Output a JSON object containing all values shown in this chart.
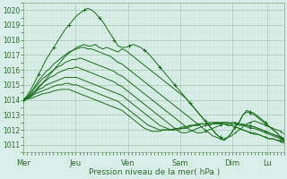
{
  "xlabel": "Pression niveau de la mer( hPa )",
  "bg_color": "#d8eee8",
  "grid_major_color": "#b0ccb8",
  "grid_minor_color": "#c8e0d0",
  "line_color": "#1a6b1a",
  "ylim": [
    1010.5,
    1020.5
  ],
  "yticks": [
    1011,
    1012,
    1013,
    1014,
    1015,
    1016,
    1017,
    1018,
    1019,
    1020
  ],
  "x_day_labels": [
    "Mer",
    "Jeu",
    "Ven",
    "Sam",
    "Dim",
    "Lu"
  ],
  "x_day_positions": [
    0,
    0.2,
    0.4,
    0.6,
    0.8,
    0.933
  ],
  "series": [
    [
      1014.0,
      1014.1,
      1014.3,
      1014.5,
      1014.8,
      1015.1,
      1015.4,
      1015.7,
      1016.0,
      1016.3,
      1016.6,
      1016.9,
      1017.1,
      1017.3,
      1017.5,
      1017.6,
      1017.7,
      1017.6,
      1017.6,
      1017.7,
      1017.5,
      1017.4,
      1017.5,
      1017.4,
      1017.3,
      1017.2,
      1017.4,
      1017.3,
      1017.1,
      1016.9,
      1016.7,
      1016.5,
      1016.3,
      1016.1,
      1015.9,
      1015.7,
      1015.5,
      1015.3,
      1015.1,
      1014.9,
      1014.7,
      1014.5,
      1014.3,
      1014.1,
      1013.8,
      1013.5,
      1013.2,
      1012.9,
      1012.6,
      1012.3,
      1012.0,
      1011.7,
      1011.5,
      1011.3,
      1011.5,
      1011.8,
      1012.2,
      1012.5,
      1013.0,
      1013.2,
      1013.1,
      1013.0,
      1012.8,
      1012.6,
      1012.4,
      1012.2,
      1012.0,
      1011.8,
      1011.5,
      1011.3
    ],
    [
      1014.0,
      1014.2,
      1014.5,
      1014.9,
      1015.3,
      1015.6,
      1015.9,
      1016.1,
      1016.4,
      1016.6,
      1016.8,
      1017.0,
      1017.2,
      1017.3,
      1017.4,
      1017.5,
      1017.5,
      1017.4,
      1017.4,
      1017.3,
      1017.2,
      1017.1,
      1017.0,
      1016.9,
      1016.7,
      1016.5,
      1016.4,
      1016.2,
      1016.0,
      1015.8,
      1015.6,
      1015.4,
      1015.2,
      1015.0,
      1014.8,
      1014.6,
      1014.4,
      1014.2,
      1014.0,
      1013.8,
      1013.6,
      1013.4,
      1013.2,
      1013.0,
      1012.8,
      1012.6,
      1012.4,
      1012.2,
      1012.0,
      1011.8,
      1011.6,
      1011.5,
      1011.4,
      1011.4,
      1011.5,
      1011.6,
      1011.8,
      1012.0,
      1012.2,
      1012.4,
      1012.5,
      1012.6,
      1012.5,
      1012.4,
      1012.3,
      1012.2,
      1012.1,
      1012.0,
      1011.9,
      1011.7
    ],
    [
      1014.0,
      1014.2,
      1014.5,
      1014.8,
      1015.1,
      1015.4,
      1015.6,
      1015.8,
      1016.0,
      1016.2,
      1016.3,
      1016.5,
      1016.6,
      1016.7,
      1016.7,
      1016.8,
      1016.7,
      1016.6,
      1016.5,
      1016.4,
      1016.3,
      1016.2,
      1016.1,
      1016.0,
      1015.9,
      1015.7,
      1015.6,
      1015.4,
      1015.2,
      1015.0,
      1014.8,
      1014.6,
      1014.4,
      1014.2,
      1014.0,
      1013.8,
      1013.6,
      1013.4,
      1013.2,
      1013.0,
      1012.8,
      1012.6,
      1012.4,
      1012.2,
      1012.0,
      1011.9,
      1011.8,
      1011.8,
      1011.9,
      1012.0,
      1012.1,
      1012.2,
      1012.3,
      1012.4,
      1012.4,
      1012.5,
      1012.5,
      1012.4,
      1012.4,
      1012.3,
      1012.3,
      1012.2,
      1012.1,
      1012.0,
      1011.9,
      1011.8,
      1011.7,
      1011.6,
      1011.5,
      1011.4
    ],
    [
      1014.0,
      1014.1,
      1014.4,
      1014.6,
      1014.9,
      1015.1,
      1015.3,
      1015.5,
      1015.6,
      1015.8,
      1015.9,
      1016.0,
      1016.1,
      1016.1,
      1016.2,
      1016.1,
      1016.0,
      1015.9,
      1015.8,
      1015.7,
      1015.6,
      1015.5,
      1015.4,
      1015.3,
      1015.2,
      1015.0,
      1014.9,
      1014.7,
      1014.5,
      1014.3,
      1014.1,
      1013.9,
      1013.7,
      1013.5,
      1013.3,
      1013.1,
      1012.9,
      1012.7,
      1012.5,
      1012.3,
      1012.1,
      1011.9,
      1011.8,
      1011.8,
      1011.9,
      1012.0,
      1012.1,
      1012.2,
      1012.3,
      1012.3,
      1012.4,
      1012.4,
      1012.4,
      1012.5,
      1012.5,
      1012.4,
      1012.4,
      1012.4,
      1012.3,
      1012.3,
      1012.2,
      1012.2,
      1012.1,
      1012.0,
      1011.9,
      1011.8,
      1011.7,
      1011.6,
      1011.5,
      1011.4
    ],
    [
      1014.0,
      1014.1,
      1014.3,
      1014.5,
      1014.7,
      1014.8,
      1015.0,
      1015.1,
      1015.2,
      1015.3,
      1015.4,
      1015.5,
      1015.5,
      1015.5,
      1015.5,
      1015.4,
      1015.3,
      1015.2,
      1015.1,
      1015.0,
      1014.9,
      1014.8,
      1014.7,
      1014.6,
      1014.5,
      1014.4,
      1014.3,
      1014.1,
      1013.9,
      1013.7,
      1013.5,
      1013.3,
      1013.1,
      1012.9,
      1012.7,
      1012.5,
      1012.3,
      1012.2,
      1012.1,
      1012.0,
      1012.0,
      1012.0,
      1012.1,
      1012.1,
      1012.2,
      1012.3,
      1012.3,
      1012.4,
      1012.4,
      1012.4,
      1012.4,
      1012.5,
      1012.5,
      1012.5,
      1012.5,
      1012.4,
      1012.4,
      1012.3,
      1012.3,
      1012.2,
      1012.1,
      1012.1,
      1012.0,
      1011.9,
      1011.8,
      1011.7,
      1011.6,
      1011.5,
      1011.4,
      1011.3
    ],
    [
      1014.0,
      1014.1,
      1014.2,
      1014.4,
      1014.5,
      1014.6,
      1014.7,
      1014.8,
      1014.9,
      1015.0,
      1015.0,
      1015.1,
      1015.1,
      1015.0,
      1015.0,
      1014.9,
      1014.8,
      1014.7,
      1014.6,
      1014.5,
      1014.4,
      1014.3,
      1014.2,
      1014.1,
      1014.0,
      1013.9,
      1013.7,
      1013.5,
      1013.3,
      1013.1,
      1012.9,
      1012.7,
      1012.5,
      1012.3,
      1012.2,
      1012.1,
      1012.0,
      1012.0,
      1012.0,
      1012.0,
      1012.0,
      1012.1,
      1012.1,
      1012.2,
      1012.3,
      1012.3,
      1012.4,
      1012.4,
      1012.4,
      1012.5,
      1012.5,
      1012.5,
      1012.4,
      1012.4,
      1012.3,
      1012.3,
      1012.2,
      1012.1,
      1012.0,
      1011.9,
      1011.8,
      1011.8,
      1011.7,
      1011.6,
      1011.5,
      1011.4,
      1011.4,
      1011.3,
      1011.3,
      1011.2
    ],
    [
      1014.0,
      1014.05,
      1014.1,
      1014.2,
      1014.3,
      1014.4,
      1014.45,
      1014.5,
      1014.6,
      1014.65,
      1014.7,
      1014.7,
      1014.7,
      1014.6,
      1014.5,
      1014.4,
      1014.3,
      1014.2,
      1014.1,
      1014.0,
      1013.9,
      1013.8,
      1013.7,
      1013.6,
      1013.5,
      1013.4,
      1013.3,
      1013.1,
      1012.9,
      1012.7,
      1012.5,
      1012.3,
      1012.1,
      1012.0,
      1011.9,
      1011.9,
      1011.9,
      1012.0,
      1012.0,
      1012.0,
      1012.1,
      1012.1,
      1012.2,
      1012.2,
      1012.3,
      1012.3,
      1012.3,
      1012.4,
      1012.4,
      1012.4,
      1012.4,
      1012.5,
      1012.4,
      1012.4,
      1012.3,
      1012.3,
      1012.2,
      1012.1,
      1012.0,
      1011.9,
      1011.8,
      1011.7,
      1011.7,
      1011.6,
      1011.5,
      1011.4,
      1011.4,
      1011.3,
      1011.2,
      1011.1
    ],
    [
      1014.0,
      1014.3,
      1014.7,
      1015.2,
      1015.7,
      1016.2,
      1016.7,
      1017.1,
      1017.5,
      1017.9,
      1018.3,
      1018.7,
      1019.0,
      1019.3,
      1019.6,
      1019.8,
      1020.0,
      1020.1,
      1020.0,
      1019.8,
      1019.5,
      1019.2,
      1018.8,
      1018.4,
      1018.0,
      1017.6,
      1017.5,
      1017.5,
      1017.6,
      1017.7,
      1017.6,
      1017.5,
      1017.3,
      1017.1,
      1016.8,
      1016.5,
      1016.2,
      1015.9,
      1015.6,
      1015.3,
      1015.0,
      1014.7,
      1014.4,
      1014.1,
      1013.8,
      1013.5,
      1013.2,
      1012.9,
      1012.6,
      1012.3,
      1012.0,
      1011.7,
      1011.5,
      1011.3,
      1011.5,
      1011.8,
      1012.2,
      1012.5,
      1013.0,
      1013.3,
      1013.2,
      1013.1,
      1012.9,
      1012.7,
      1012.5,
      1012.2,
      1012.0,
      1011.8,
      1011.5,
      1011.2
    ]
  ]
}
